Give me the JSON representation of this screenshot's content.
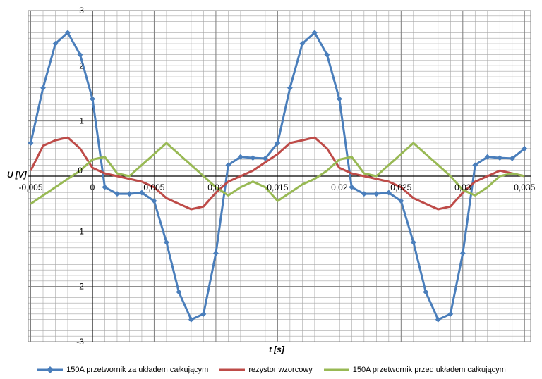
{
  "chart_data": {
    "type": "line",
    "title": "",
    "xlabel": "t",
    "xlabel_unit": "[s]",
    "ylabel": "U",
    "ylabel_unit": "[V]",
    "xlim": [
      -0.0052,
      0.0355
    ],
    "ylim": [
      -3,
      3
    ],
    "grid": true,
    "legend_position": "bottom",
    "x_ticks": [
      -0.005,
      0,
      0.005,
      0.01,
      0.015,
      0.02,
      0.025,
      0.03,
      0.035
    ],
    "x_tick_labels": [
      "-0,005",
      "0",
      "0,005",
      "0,01",
      "0,015",
      "0,02",
      "0,025",
      "0,03",
      "0,035"
    ],
    "y_ticks": [
      3,
      2,
      1,
      0,
      -1,
      -2,
      -3
    ],
    "y_tick_labels": [
      "3",
      "2",
      "1",
      "0",
      "-1",
      "-2",
      "-3"
    ],
    "x": [
      -0.005,
      -0.004,
      -0.003,
      -0.002,
      -0.001,
      0.0,
      0.001,
      0.002,
      0.003,
      0.004,
      0.005,
      0.006,
      0.007,
      0.008,
      0.009,
      0.01,
      0.011,
      0.012,
      0.013,
      0.014,
      0.015,
      0.016,
      0.017,
      0.018,
      0.019,
      0.02,
      0.021,
      0.022,
      0.023,
      0.024,
      0.025,
      0.026,
      0.027,
      0.028,
      0.029,
      0.03,
      0.031,
      0.032,
      0.033,
      0.034,
      0.035
    ],
    "series": [
      {
        "name": "150A przetwornik za układem całkującym",
        "color": "#4a7ebb",
        "marker": "diamond",
        "values": [
          0.6,
          1.6,
          2.4,
          2.6,
          2.2,
          1.4,
          -0.2,
          -0.32,
          -0.32,
          -0.3,
          -0.45,
          -1.2,
          -2.1,
          -2.6,
          -2.5,
          -1.4,
          0.2,
          0.35,
          0.33,
          0.32,
          0.6,
          1.6,
          2.4,
          2.6,
          2.2,
          1.4,
          -0.2,
          -0.32,
          -0.32,
          -0.3,
          -0.45,
          -1.2,
          -2.1,
          -2.6,
          -2.5,
          -1.4,
          0.2,
          0.35,
          0.33,
          0.32,
          0.5
        ]
      },
      {
        "name": "rezystor wzorcowy",
        "color": "#be4b48",
        "marker": "none",
        "values": [
          0.1,
          0.55,
          0.65,
          0.7,
          0.5,
          0.15,
          0.05,
          0.0,
          -0.05,
          -0.1,
          -0.2,
          -0.4,
          -0.5,
          -0.6,
          -0.55,
          -0.3,
          -0.1,
          0.0,
          0.1,
          0.25,
          0.4,
          0.6,
          0.65,
          0.7,
          0.5,
          0.15,
          0.05,
          0.0,
          -0.05,
          -0.1,
          -0.2,
          -0.4,
          -0.5,
          -0.6,
          -0.55,
          -0.3,
          -0.1,
          0.0,
          0.1,
          0.05,
          0.0
        ]
      },
      {
        "name": "150A przetwornik przed układem całkującym",
        "color": "#98b954",
        "marker": "none",
        "values": [
          -0.5,
          -0.35,
          -0.2,
          -0.05,
          0.1,
          0.3,
          0.35,
          0.05,
          0.0,
          0.2,
          0.4,
          0.6,
          0.4,
          0.2,
          0.0,
          -0.2,
          -0.35,
          -0.2,
          -0.1,
          -0.2,
          -0.45,
          -0.3,
          -0.15,
          -0.05,
          0.1,
          0.3,
          0.35,
          0.05,
          0.0,
          0.2,
          0.4,
          0.6,
          0.4,
          0.2,
          0.0,
          -0.25,
          -0.35,
          -0.2,
          0.0,
          0.05,
          0.0
        ]
      }
    ]
  }
}
